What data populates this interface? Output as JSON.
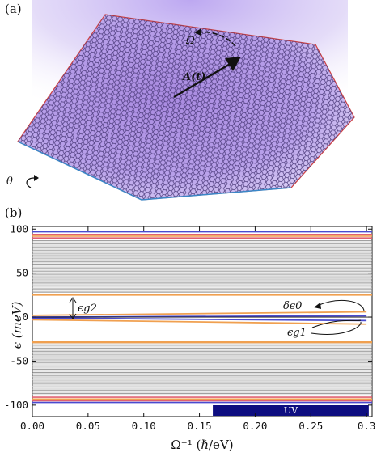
{
  "panel_a": {
    "label": "(a)",
    "omega_label": "Ω",
    "vector_label": "A(t)",
    "theta_label": "θ"
  },
  "panel_b": {
    "label": "(b)",
    "uv_label": "UV",
    "annotations": {
      "eg2": "ϵg2",
      "deps0": "δϵ0",
      "eg1": "ϵg1"
    }
  },
  "chart_data": {
    "type": "line",
    "xlabel": "Ω⁻¹ (ℏ/eV)",
    "ylabel": "ϵ (meV)",
    "xlim": [
      0.0,
      0.305
    ],
    "ylim": [
      -113,
      103
    ],
    "xticks": [
      "0.00",
      "0.05",
      "0.10",
      "0.15",
      "0.20",
      "0.25",
      "0.3"
    ],
    "yticks": [
      "100",
      "50",
      "0",
      "-50",
      "-100"
    ],
    "grey_bands_upper": [
      28,
      88
    ],
    "grey_bands_lower": [
      -88,
      -28
    ],
    "colors": {
      "grey": "#9a9a9a",
      "orange": "#f0a050",
      "blue": "#4a4ad0",
      "red": "#e06070",
      "uv": "#0d0d80"
    },
    "levels": [
      {
        "y": 97,
        "color": "blue"
      },
      {
        "y": 94,
        "color": "red"
      },
      {
        "y": 92,
        "color": "orange"
      },
      {
        "y": 90,
        "color": "red"
      },
      {
        "y": 26,
        "color": "orange"
      },
      {
        "y": 25,
        "color": "orange"
      },
      {
        "y": -28,
        "color": "orange"
      },
      {
        "y": -29,
        "color": "orange"
      },
      {
        "y": -91,
        "color": "red"
      },
      {
        "y": -93,
        "color": "orange"
      },
      {
        "y": -95,
        "color": "red"
      },
      {
        "y": -97,
        "color": "blue"
      }
    ],
    "splitting": {
      "x": [
        0.0,
        0.3
      ],
      "upper_orange": [
        2,
        6
      ],
      "upper_blue": [
        0,
        1.5
      ],
      "lower_blue": [
        -1,
        -4
      ],
      "lower_orange": [
        -3,
        -8
      ]
    },
    "uv_range": [
      0.162,
      0.302
    ]
  }
}
